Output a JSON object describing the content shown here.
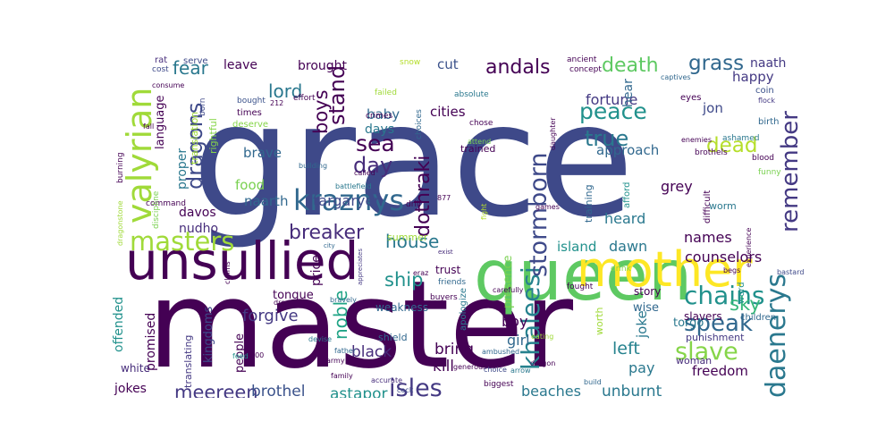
{
  "words": [
    {
      "text": "grace",
      "color": "#3e4989"
    },
    {
      "text": "master",
      "color": "#440154"
    },
    {
      "text": "queen",
      "color": "#5ec962"
    },
    {
      "text": "unsullied",
      "color": "#440154"
    },
    {
      "text": "mother",
      "color": "#fde725"
    },
    {
      "text": "kraznys",
      "color": "#31688e"
    },
    {
      "text": "valyrian",
      "color": "#a0da39"
    },
    {
      "text": "masters",
      "color": "#a0da39"
    },
    {
      "text": "remember",
      "color": "#443983"
    },
    {
      "text": "dragons",
      "color": "#3e4989"
    },
    {
      "text": "khaleesi",
      "color": "#26828e"
    },
    {
      "text": "daenerys",
      "color": "#2a788e"
    },
    {
      "text": "stormborn",
      "color": "#3e4989"
    },
    {
      "text": "dothraki",
      "color": "#440154"
    },
    {
      "text": "peace",
      "color": "#21918c"
    },
    {
      "text": "chains",
      "color": "#21918c"
    },
    {
      "text": "speak",
      "color": "#31688e"
    },
    {
      "text": "slave",
      "color": "#86d549"
    },
    {
      "text": "breaker",
      "color": "#472d7b"
    },
    {
      "text": "isles",
      "color": "#443983"
    },
    {
      "text": "meereen",
      "color": "#443983"
    },
    {
      "text": "grass",
      "color": "#31688e"
    },
    {
      "text": "death",
      "color": "#5ec962"
    },
    {
      "text": "andals",
      "color": "#440154"
    },
    {
      "text": "true",
      "color": "#2a788e"
    },
    {
      "text": "sea",
      "color": "#440154"
    },
    {
      "text": "day",
      "color": "#472d7b"
    },
    {
      "text": "stand",
      "color": "#440154"
    },
    {
      "text": "lord",
      "color": "#2a788e"
    },
    {
      "text": "fear",
      "color": "#2a788e"
    },
    {
      "text": "boys",
      "color": "#440154"
    },
    {
      "text": "dead",
      "color": "#b5de2b"
    },
    {
      "text": "house",
      "color": "#2a788e"
    },
    {
      "text": "ship",
      "color": "#21918c"
    },
    {
      "text": "sky",
      "color": "#35b779"
    },
    {
      "text": "left",
      "color": "#26828e"
    },
    {
      "text": "noble",
      "color": "#20a486"
    },
    {
      "text": "targaryen",
      "color": "#3e4989"
    },
    {
      "text": "forgive",
      "color": "#443983"
    },
    {
      "text": "brothel",
      "color": "#3b528b"
    },
    {
      "text": "astapor",
      "color": "#21918c"
    },
    {
      "text": "unburnt",
      "color": "#2a788e"
    },
    {
      "text": "beaches",
      "color": "#2a788e"
    },
    {
      "text": "kill",
      "color": "#440154"
    },
    {
      "text": "bring",
      "color": "#440154"
    },
    {
      "text": "black",
      "color": "#472d7b"
    },
    {
      "text": "girl",
      "color": "#31688e"
    },
    {
      "text": "boy",
      "color": "#440154"
    },
    {
      "text": "freedom",
      "color": "#440154"
    },
    {
      "text": "pay",
      "color": "#2a788e"
    },
    {
      "text": "joke",
      "color": "#2a788e"
    },
    {
      "text": "counselors",
      "color": "#440154"
    },
    {
      "text": "names",
      "color": "#440154"
    },
    {
      "text": "heard",
      "color": "#2a788e"
    },
    {
      "text": "island",
      "color": "#21918c"
    },
    {
      "text": "dawn",
      "color": "#2a788e"
    },
    {
      "text": "fortune",
      "color": "#443983"
    },
    {
      "text": "approach",
      "color": "#31688e"
    },
    {
      "text": "grey",
      "color": "#440154"
    },
    {
      "text": "jon",
      "color": "#3e4989"
    },
    {
      "text": "happy",
      "color": "#443983"
    },
    {
      "text": "naath",
      "color": "#443983"
    },
    {
      "text": "cities",
      "color": "#440154"
    },
    {
      "text": "baby",
      "color": "#31688e"
    },
    {
      "text": "days",
      "color": "#2a788e"
    },
    {
      "text": "brought",
      "color": "#440154"
    },
    {
      "text": "cut",
      "color": "#3b528b"
    },
    {
      "text": "leave",
      "color": "#440154"
    },
    {
      "text": "brave",
      "color": "#31688e"
    },
    {
      "text": "food",
      "color": "#7ad151"
    },
    {
      "text": "naarth",
      "color": "#31688e"
    },
    {
      "text": "davos",
      "color": "#440154"
    },
    {
      "text": "nudho",
      "color": "#472d7b"
    },
    {
      "text": "proper",
      "color": "#2a788e"
    },
    {
      "text": "language",
      "color": "#440154"
    },
    {
      "text": "translation",
      "color": "#a0da39"
    },
    {
      "text": "rightful",
      "color": "#86d549"
    },
    {
      "text": "offended",
      "color": "#21918c"
    },
    {
      "text": "promised",
      "color": "#440154"
    },
    {
      "text": "kingdoms",
      "color": "#3e4989"
    },
    {
      "text": "people",
      "color": "#440154"
    },
    {
      "text": "jokes",
      "color": "#440154"
    },
    {
      "text": "white",
      "color": "#472d7b"
    },
    {
      "text": "translating",
      "color": "#443983"
    },
    {
      "text": "tongue",
      "color": "#440154"
    },
    {
      "text": "weakness",
      "color": "#31688e"
    },
    {
      "text": "presence",
      "color": "#7ad151"
    },
    {
      "text": "trust",
      "color": "#440154"
    },
    {
      "text": "summer",
      "color": "#a0da39"
    },
    {
      "text": "price",
      "color": "#440154"
    },
    {
      "text": "shield",
      "color": "#31688e"
    },
    {
      "text": "apologize",
      "color": "#2a788e"
    },
    {
      "text": "wise",
      "color": "#31688e"
    },
    {
      "text": "story",
      "color": "#440154"
    },
    {
      "text": "torgo",
      "color": "#2a788e"
    },
    {
      "text": "slavers",
      "color": "#440154"
    },
    {
      "text": "punishment",
      "color": "#443983"
    },
    {
      "text": "woman",
      "color": "#472d7b"
    },
    {
      "text": "children",
      "color": "#31688e"
    },
    {
      "text": "word",
      "color": "#21918c"
    },
    {
      "text": "worth",
      "color": "#a0da39"
    },
    {
      "text": "trained",
      "color": "#440154"
    },
    {
      "text": "training",
      "color": "#31688e"
    },
    {
      "text": "afford",
      "color": "#21918c"
    },
    {
      "text": "difficult",
      "color": "#440154"
    },
    {
      "text": "worm",
      "color": "#2a788e"
    },
    {
      "text": "experience",
      "color": "#440154"
    },
    {
      "text": "serve",
      "color": "#3e4989"
    },
    {
      "text": "rat",
      "color": "#472d7b"
    },
    {
      "text": "cost",
      "color": "#3e4989"
    },
    {
      "text": "consume",
      "color": "#440154"
    },
    {
      "text": "bought",
      "color": "#3b528b"
    },
    {
      "text": "times",
      "color": "#440154"
    },
    {
      "text": "deserve",
      "color": "#86d549"
    },
    {
      "text": "effort",
      "color": "#440154"
    },
    {
      "text": "failed",
      "color": "#a0da39"
    },
    {
      "text": "crimes",
      "color": "#440154"
    },
    {
      "text": "choices",
      "color": "#31688e"
    },
    {
      "text": "absolute",
      "color": "#2a788e"
    },
    {
      "text": "chose",
      "color": "#440154"
    },
    {
      "text": "attend",
      "color": "#7ad151"
    },
    {
      "text": "daughter",
      "color": "#440154"
    },
    {
      "text": "captives",
      "color": "#31688e"
    },
    {
      "text": "eyes",
      "color": "#440154"
    },
    {
      "text": "coin",
      "color": "#3b528b"
    },
    {
      "text": "flock",
      "color": "#443983"
    },
    {
      "text": "birth",
      "color": "#31688e"
    },
    {
      "text": "enemies",
      "color": "#440154"
    },
    {
      "text": "ashamed",
      "color": "#2a788e"
    },
    {
      "text": "brothels",
      "color": "#440154"
    },
    {
      "text": "blood",
      "color": "#440154"
    },
    {
      "text": "funny",
      "color": "#7ad151"
    },
    {
      "text": "snow",
      "color": "#b5de2b"
    },
    {
      "text": "concept",
      "color": "#440154"
    },
    {
      "text": "ancient",
      "color": "#440154"
    },
    {
      "text": "building",
      "color": "#31688e"
    },
    {
      "text": "battlefield",
      "color": "#2a788e"
    },
    {
      "text": "called",
      "color": "#440154"
    },
    {
      "text": "born",
      "color": "#3e4989"
    },
    {
      "text": "burning",
      "color": "#440154"
    },
    {
      "text": "dragonstone",
      "color": "#a0da39"
    },
    {
      "text": "command",
      "color": "#440154"
    },
    {
      "text": "discipline",
      "color": "#7ad151"
    },
    {
      "text": "fall",
      "color": "#440154"
    },
    {
      "text": "claims",
      "color": "#440154"
    },
    {
      "text": "drill",
      "color": "#440154"
    },
    {
      "text": "friends",
      "color": "#31688e"
    },
    {
      "text": "appreciates",
      "color": "#443983"
    },
    {
      "text": "erаz",
      "color": "#440154"
    },
    {
      "text": "bravely",
      "color": "#31688e"
    },
    {
      "text": "buyers",
      "color": "#440154"
    },
    {
      "text": "fought",
      "color": "#440154"
    },
    {
      "text": "drink",
      "color": "#86d549"
    },
    {
      "text": "begs",
      "color": "#440154"
    },
    {
      "text": "bastard",
      "color": "#3e4989"
    },
    {
      "text": "drop",
      "color": "#440154"
    },
    {
      "text": "devise",
      "color": "#2a788e"
    },
    {
      "text": "father",
      "color": "#31688e"
    },
    {
      "text": "feed",
      "color": "#21918c"
    },
    {
      "text": "family",
      "color": "#440154"
    },
    {
      "text": "accurate",
      "color": "#472d7b"
    },
    {
      "text": "carefully",
      "color": "#440154"
    },
    {
      "text": "ambushed",
      "color": "#31688e"
    },
    {
      "text": "generous",
      "color": "#440154"
    },
    {
      "text": "choice",
      "color": "#3e4989"
    },
    {
      "text": "dragon",
      "color": "#440154"
    },
    {
      "text": "eating",
      "color": "#a0da39"
    },
    {
      "text": "biggest",
      "color": "#440154"
    },
    {
      "text": "cock",
      "color": "#3e4989"
    },
    {
      "text": "arrow",
      "color": "#2a788e"
    },
    {
      "text": "build",
      "color": "#31688e"
    },
    {
      "text": "army",
      "color": "#440154"
    },
    {
      "text": "city",
      "color": "#31688e"
    },
    {
      "text": "exist",
      "color": "#472d7b"
    },
    {
      "text": "games",
      "color": "#440154"
    },
    {
      "text": "212",
      "color": "#440154"
    },
    {
      "text": "877",
      "color": "#440154"
    },
    {
      "text": "000",
      "color": "#440154"
    },
    {
      "text": "fight",
      "color": "#b5de2b"
    },
    {
      "text": "hear",
      "color": "#31688e"
    }
  ]
}
